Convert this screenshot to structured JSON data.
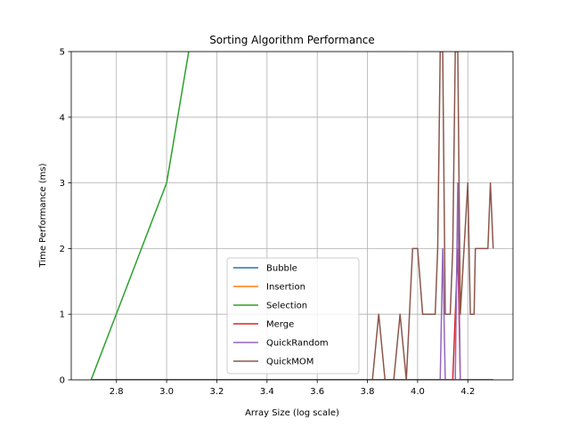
{
  "chart_data": {
    "type": "line",
    "title": "Sorting Algorithm Performance",
    "xlabel": "Array Size (log scale)",
    "ylabel": "Time Performance (ms)",
    "xlim": [
      2.62,
      4.38
    ],
    "ylim": [
      0,
      5
    ],
    "x_ticks": [
      "2.8",
      "3.0",
      "3.2",
      "3.4",
      "3.6",
      "3.8",
      "4.0",
      "4.2"
    ],
    "x_tick_values": [
      2.8,
      3.0,
      3.2,
      3.4,
      3.6,
      3.8,
      4.0,
      4.2
    ],
    "y_ticks": [
      "0",
      "1",
      "2",
      "3",
      "4",
      "5"
    ],
    "y_tick_values": [
      0,
      1,
      2,
      3,
      4,
      5
    ],
    "grid": true,
    "legend_position": "lower-center",
    "series": [
      {
        "name": "Bubble",
        "color": "#1f77b4",
        "points": [
          [
            2.699,
            0
          ],
          [
            4.301,
            0
          ]
        ]
      },
      {
        "name": "Insertion",
        "color": "#ff7f0e",
        "points": [
          [
            2.699,
            0
          ],
          [
            4.301,
            0
          ]
        ]
      },
      {
        "name": "Selection",
        "color": "#2ca02c",
        "points": [
          [
            2.699,
            0
          ],
          [
            3.0,
            3
          ],
          [
            3.176,
            7
          ]
        ]
      },
      {
        "name": "Merge",
        "color": "#d62728",
        "points": [
          [
            2.699,
            0
          ],
          [
            4.14,
            0
          ],
          [
            4.16,
            2
          ],
          [
            4.17,
            0
          ],
          [
            4.301,
            0
          ]
        ]
      },
      {
        "name": "QuickRandom",
        "color": "#9467bd",
        "points": [
          [
            2.699,
            0
          ],
          [
            4.09,
            0
          ],
          [
            4.1,
            2
          ],
          [
            4.11,
            0
          ],
          [
            4.15,
            0
          ],
          [
            4.16,
            3
          ],
          [
            4.17,
            0
          ],
          [
            4.301,
            0
          ]
        ]
      },
      {
        "name": "QuickMOM",
        "color": "#8c564b",
        "points": [
          [
            2.699,
            0
          ],
          [
            3.82,
            0
          ],
          [
            3.845,
            1
          ],
          [
            3.87,
            0
          ],
          [
            3.905,
            0
          ],
          [
            3.93,
            1
          ],
          [
            3.955,
            0
          ],
          [
            3.98,
            2
          ],
          [
            4.0,
            2
          ],
          [
            4.02,
            1
          ],
          [
            4.07,
            1
          ],
          [
            4.08,
            2
          ],
          [
            4.09,
            5
          ],
          [
            4.1,
            5
          ],
          [
            4.11,
            1
          ],
          [
            4.13,
            1
          ],
          [
            4.14,
            2
          ],
          [
            4.15,
            5
          ],
          [
            4.16,
            5
          ],
          [
            4.17,
            1
          ],
          [
            4.2,
            3
          ],
          [
            4.21,
            1
          ],
          [
            4.225,
            1
          ],
          [
            4.23,
            2
          ],
          [
            4.28,
            2
          ],
          [
            4.29,
            3
          ],
          [
            4.301,
            2
          ]
        ]
      }
    ]
  }
}
